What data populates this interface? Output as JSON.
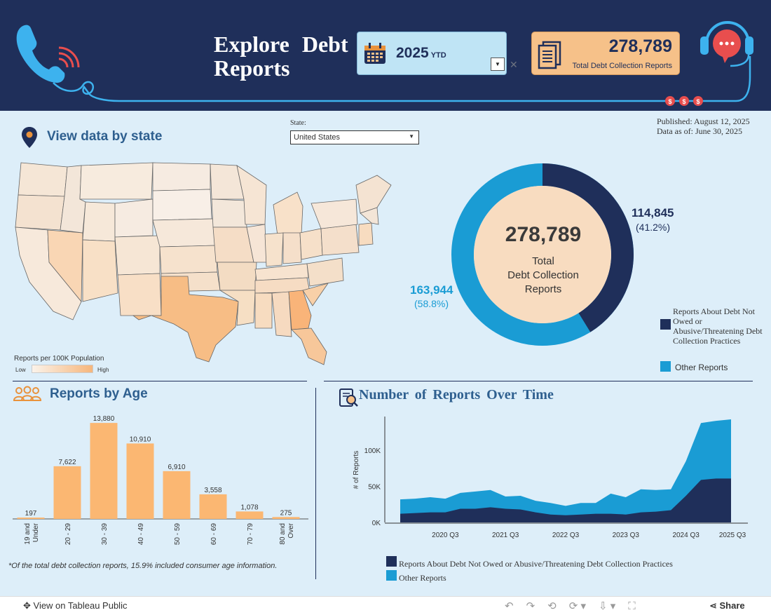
{
  "header": {
    "title": "Explore Debt Reports",
    "year_value": "2025",
    "year_suffix": "YTD",
    "dropdown_arrow": "▼",
    "total_value": "278,789",
    "total_label": "Total Debt Collection Reports",
    "x_mark": "✕",
    "icons": [
      "phone-icon",
      "calendar-icon",
      "document-icon",
      "headset-chat-icon",
      "dollar-coin-icon"
    ]
  },
  "state_section": {
    "title": "View data by state",
    "state_label": "State:",
    "state_value": "United States",
    "published": "Published: August 12, 2025",
    "data_as_of": "Data as of: June 30, 2025",
    "legend_title": "Reports per 100K Population",
    "legend_low": "Low",
    "legend_high": "High"
  },
  "donut": {
    "center_value": "278,789",
    "center_label_line1": "Total",
    "center_label_line2": "Debt Collection",
    "center_label_line3": "Reports",
    "dark_value": "114,845",
    "dark_pct": "(41.2%)",
    "light_value": "163,944",
    "light_pct": "(58.8%)",
    "legend_dark": "Reports About Debt Not Owed or Abusive/Threatening Debt Collection Practices",
    "legend_light": "Other Reports",
    "colors": {
      "dark": "#1f2f5a",
      "light": "#1a9cd4",
      "center": "#f8dcc0"
    }
  },
  "age_section": {
    "title": "Reports by Age",
    "note": "*Of the total debt collection reports, 15.9% included consumer age information."
  },
  "time_section": {
    "title": "Number of Reports Over Time",
    "legend_dark": "Reports About Debt Not Owed or Abusive/Threatening Debt Collection Practices",
    "legend_light": "Other Reports"
  },
  "chart_data": [
    {
      "type": "bar",
      "title": "Reports by Age",
      "categories": [
        "19 and Under",
        "20 - 29",
        "30 - 39",
        "40 - 49",
        "50 - 59",
        "60 - 69",
        "70 - 79",
        "80 and Over"
      ],
      "values": [
        197,
        7622,
        13880,
        10910,
        6910,
        3558,
        1078,
        275
      ],
      "labels": [
        "197",
        "7,622",
        "13,880",
        "10,910",
        "6,910",
        "3,558",
        "1,078",
        "275"
      ],
      "ylim": [
        0,
        14500
      ],
      "color": "#fbb772"
    },
    {
      "type": "area",
      "title": "Number of Reports Over Time",
      "ylabel": "# of Reports",
      "x_ticks": [
        "2020 Q3",
        "2021 Q3",
        "2022 Q3",
        "2023 Q3",
        "2024 Q3",
        "2025 Q3"
      ],
      "y_ticks": [
        "0K",
        "50K",
        "100K"
      ],
      "ylim": [
        0,
        145000
      ],
      "x": [
        "2019 Q4",
        "2020 Q1",
        "2020 Q2",
        "2020 Q3",
        "2020 Q4",
        "2021 Q1",
        "2021 Q2",
        "2021 Q3",
        "2021 Q4",
        "2022 Q1",
        "2022 Q2",
        "2022 Q3",
        "2022 Q4",
        "2023 Q1",
        "2023 Q2",
        "2023 Q3",
        "2023 Q4",
        "2024 Q1",
        "2024 Q2",
        "2024 Q3",
        "2024 Q4",
        "2025 Q1",
        "2025 Q2"
      ],
      "series": [
        {
          "name": "Reports About Debt Not Owed or Abusive/Threatening Debt Collection Practices",
          "color": "#1f2f5a",
          "values": [
            12000,
            13000,
            14000,
            14000,
            19000,
            19000,
            21000,
            19000,
            18000,
            14000,
            11000,
            10000,
            11000,
            12000,
            12000,
            11000,
            14000,
            15000,
            17000,
            37000,
            59000,
            61000,
            61000
          ]
        },
        {
          "name": "Other Reports",
          "color": "#1a9cd4",
          "values": [
            20000,
            20000,
            21000,
            19000,
            22000,
            24000,
            24000,
            17000,
            19000,
            16000,
            16000,
            13000,
            16000,
            15000,
            28000,
            24000,
            32000,
            30000,
            29000,
            48000,
            79000,
            80000,
            82000
          ]
        }
      ]
    }
  ]
}
